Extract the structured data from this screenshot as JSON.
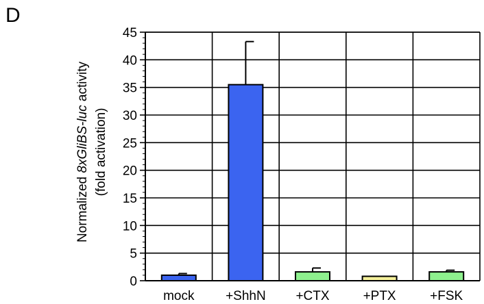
{
  "panel_label": "D",
  "chart_data": {
    "type": "bar",
    "categories": [
      "mock",
      "+ShhN",
      "+CTX",
      "+PTX",
      "+FSK"
    ],
    "values": [
      1.0,
      35.5,
      1.6,
      0.8,
      1.6
    ],
    "error_upper": [
      1.3,
      43.3,
      2.3,
      0.8,
      1.9
    ],
    "bar_colors": [
      "#3b64f0",
      "#3b64f0",
      "#8ef08e",
      "#f4f09a",
      "#8ef08e"
    ],
    "ylabel_line1_prefix": "Normalized ",
    "ylabel_line1_italic": "8xGliBS-luc",
    "ylabel_line1_suffix": " activity",
    "ylabel_line2": "(fold activation)",
    "xlabel": "",
    "ylim": [
      0,
      45
    ],
    "yticks": [
      0,
      5,
      10,
      15,
      20,
      25,
      30,
      35,
      40,
      45
    ],
    "grid": true
  }
}
